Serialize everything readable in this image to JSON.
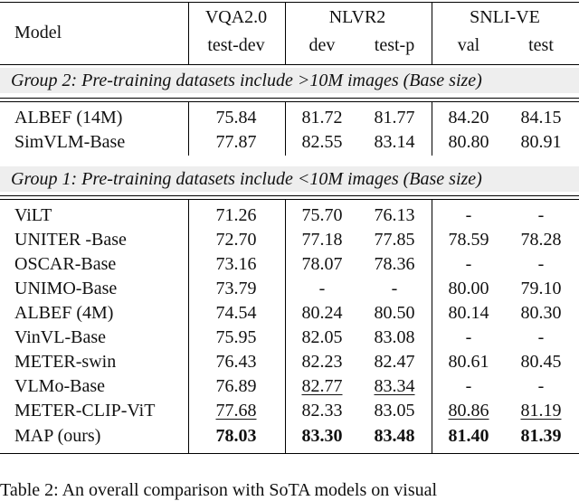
{
  "header": {
    "model_label": "Model",
    "vqa": {
      "title": "VQA2.0",
      "sub": "test-dev"
    },
    "nlvr": {
      "title": "NLVR2",
      "sub1": "dev",
      "sub2": "test-p"
    },
    "snli": {
      "title": "SNLI-VE",
      "sub1": "val",
      "sub2": "test"
    }
  },
  "groups": [
    {
      "label": "Group 2: Pre-training datasets include >10M images (Base size)",
      "rows": [
        {
          "model": "ALBEF (14M)",
          "values": [
            "75.84",
            "81.72",
            "81.77",
            "84.20",
            "84.15"
          ]
        },
        {
          "model": "SimVLM-Base",
          "values": [
            "77.87",
            "82.55",
            "83.14",
            "80.80",
            "80.91"
          ]
        }
      ]
    },
    {
      "label": "Group 1: Pre-training datasets include <10M images (Base size)",
      "rows": [
        {
          "model": "ViLT",
          "values": [
            "71.26",
            "75.70",
            "76.13",
            "-",
            "-"
          ]
        },
        {
          "model": "UNITER -Base",
          "values": [
            "72.70",
            "77.18",
            "77.85",
            "78.59",
            "78.28"
          ]
        },
        {
          "model": "OSCAR-Base",
          "values": [
            "73.16",
            "78.07",
            "78.36",
            "-",
            "-"
          ]
        },
        {
          "model": "UNIMO-Base",
          "values": [
            "73.79",
            "-",
            "-",
            "80.00",
            "79.10"
          ]
        },
        {
          "model": "ALBEF (4M)",
          "values": [
            "74.54",
            "80.24",
            "80.50",
            "80.14",
            "80.30"
          ]
        },
        {
          "model": "VinVL-Base",
          "values": [
            "75.95",
            "82.05",
            "83.08",
            "-",
            "-"
          ]
        },
        {
          "model": "METER-swin",
          "values": [
            "76.43",
            "82.23",
            "82.47",
            "80.61",
            "80.45"
          ]
        },
        {
          "model": "VLMo-Base",
          "values": [
            "76.89",
            "82.77",
            "83.34",
            "-",
            "-"
          ]
        },
        {
          "model": "METER-CLIP-ViT",
          "values": [
            "77.68",
            "82.33",
            "83.05",
            "80.86",
            "81.19"
          ]
        },
        {
          "model": "MAP (ours)",
          "values": [
            "78.03",
            "83.30",
            "83.48",
            "81.40",
            "81.39"
          ]
        }
      ]
    }
  ],
  "caption": "Table 2: An overall comparison with SoTA models on visual"
}
